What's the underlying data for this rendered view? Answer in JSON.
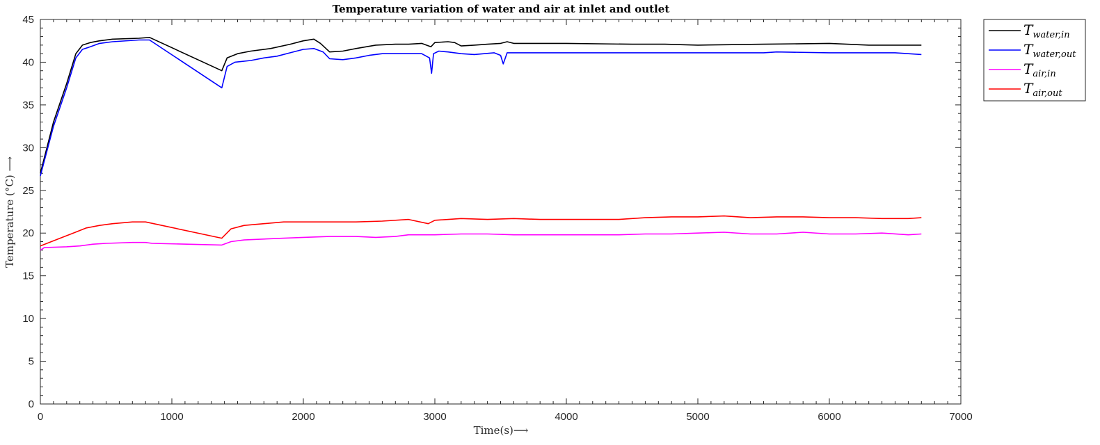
{
  "chart_data": {
    "type": "line",
    "title": "Temperature variation of water and air at inlet and outlet",
    "xlabel": "Time(s)⟶",
    "ylabel": "Temperature (°C) ⟶",
    "xlim": [
      0,
      7000
    ],
    "ylim": [
      0,
      45
    ],
    "xticks": [
      0,
      1000,
      2000,
      3000,
      4000,
      5000,
      6000,
      7000
    ],
    "yticks": [
      0,
      5,
      10,
      15,
      20,
      25,
      30,
      35,
      40,
      45
    ],
    "xtick_labels": [
      "0",
      "1000",
      "2000",
      "3000",
      "4000",
      "5000",
      "6000",
      "7000"
    ],
    "ytick_labels": [
      "0",
      "5",
      "10",
      "15",
      "20",
      "25",
      "30",
      "35",
      "40",
      "45"
    ],
    "grid": false,
    "legend_position": "outside-top-right",
    "series": [
      {
        "name": "T_water,in",
        "legend_main": "T",
        "legend_sub": "water,in",
        "color": "#000000",
        "points": [
          [
            0,
            27
          ],
          [
            100,
            33
          ],
          [
            200,
            37.5
          ],
          [
            270,
            41
          ],
          [
            320,
            42
          ],
          [
            380,
            42.3
          ],
          [
            450,
            42.5
          ],
          [
            550,
            42.7
          ],
          [
            750,
            42.8
          ],
          [
            830,
            42.9
          ],
          [
            1380,
            39
          ],
          [
            1420,
            40.5
          ],
          [
            1500,
            41
          ],
          [
            1600,
            41.3
          ],
          [
            1750,
            41.6
          ],
          [
            1900,
            42.1
          ],
          [
            2000,
            42.5
          ],
          [
            2080,
            42.7
          ],
          [
            2130,
            42.2
          ],
          [
            2200,
            41.2
          ],
          [
            2300,
            41.3
          ],
          [
            2400,
            41.6
          ],
          [
            2550,
            42
          ],
          [
            2700,
            42.1
          ],
          [
            2800,
            42.1
          ],
          [
            2900,
            42.2
          ],
          [
            2970,
            41.8
          ],
          [
            3000,
            42.3
          ],
          [
            3100,
            42.4
          ],
          [
            3150,
            42.3
          ],
          [
            3200,
            41.9
          ],
          [
            3300,
            42
          ],
          [
            3400,
            42.1
          ],
          [
            3500,
            42.2
          ],
          [
            3550,
            42.4
          ],
          [
            3600,
            42.2
          ],
          [
            4000,
            42.2
          ],
          [
            4500,
            42.1
          ],
          [
            4750,
            42.1
          ],
          [
            5000,
            42
          ],
          [
            5500,
            42.1
          ],
          [
            6000,
            42.2
          ],
          [
            6300,
            42
          ],
          [
            6600,
            42
          ],
          [
            6700,
            42
          ]
        ]
      },
      {
        "name": "T_water,out",
        "legend_main": "T",
        "legend_sub": "water,out",
        "color": "#0000ff",
        "points": [
          [
            0,
            26.7
          ],
          [
            100,
            32.5
          ],
          [
            200,
            37
          ],
          [
            270,
            40.5
          ],
          [
            320,
            41.5
          ],
          [
            380,
            41.8
          ],
          [
            450,
            42.2
          ],
          [
            550,
            42.4
          ],
          [
            750,
            42.6
          ],
          [
            830,
            42.6
          ],
          [
            1380,
            37
          ],
          [
            1420,
            39.5
          ],
          [
            1480,
            40
          ],
          [
            1600,
            40.2
          ],
          [
            1700,
            40.5
          ],
          [
            1800,
            40.7
          ],
          [
            1900,
            41.1
          ],
          [
            2000,
            41.5
          ],
          [
            2080,
            41.6
          ],
          [
            2150,
            41.2
          ],
          [
            2200,
            40.4
          ],
          [
            2300,
            40.3
          ],
          [
            2400,
            40.5
          ],
          [
            2500,
            40.8
          ],
          [
            2600,
            41
          ],
          [
            2900,
            41
          ],
          [
            2960,
            40.5
          ],
          [
            2975,
            38.7
          ],
          [
            2990,
            41
          ],
          [
            3030,
            41.3
          ],
          [
            3100,
            41.2
          ],
          [
            3200,
            41
          ],
          [
            3300,
            40.9
          ],
          [
            3450,
            41.1
          ],
          [
            3500,
            40.8
          ],
          [
            3520,
            39.8
          ],
          [
            3550,
            41.1
          ],
          [
            3600,
            41.1
          ],
          [
            4000,
            41.1
          ],
          [
            4500,
            41.1
          ],
          [
            5000,
            41.1
          ],
          [
            5500,
            41.1
          ],
          [
            5600,
            41.2
          ],
          [
            6000,
            41.1
          ],
          [
            6500,
            41.1
          ],
          [
            6700,
            40.9
          ]
        ]
      },
      {
        "name": "T_air,in",
        "legend_main": "T",
        "legend_sub": "air,in",
        "color": "#ff00ff",
        "points": [
          [
            0,
            18
          ],
          [
            30,
            18.3
          ],
          [
            200,
            18.4
          ],
          [
            300,
            18.5
          ],
          [
            400,
            18.7
          ],
          [
            500,
            18.8
          ],
          [
            700,
            18.9
          ],
          [
            800,
            18.9
          ],
          [
            850,
            18.8
          ],
          [
            1380,
            18.6
          ],
          [
            1450,
            19
          ],
          [
            1550,
            19.2
          ],
          [
            1700,
            19.3
          ],
          [
            1850,
            19.4
          ],
          [
            2000,
            19.5
          ],
          [
            2200,
            19.6
          ],
          [
            2400,
            19.6
          ],
          [
            2550,
            19.5
          ],
          [
            2700,
            19.6
          ],
          [
            2800,
            19.8
          ],
          [
            3000,
            19.8
          ],
          [
            3200,
            19.9
          ],
          [
            3400,
            19.9
          ],
          [
            3600,
            19.8
          ],
          [
            3800,
            19.8
          ],
          [
            4000,
            19.8
          ],
          [
            4400,
            19.8
          ],
          [
            4600,
            19.9
          ],
          [
            4800,
            19.9
          ],
          [
            5000,
            20
          ],
          [
            5200,
            20.1
          ],
          [
            5400,
            19.9
          ],
          [
            5600,
            19.9
          ],
          [
            5800,
            20.1
          ],
          [
            6000,
            19.9
          ],
          [
            6200,
            19.9
          ],
          [
            6400,
            20
          ],
          [
            6600,
            19.8
          ],
          [
            6700,
            19.9
          ]
        ]
      },
      {
        "name": "T_air,out",
        "legend_main": "T",
        "legend_sub": "air,out",
        "color": "#ff0000",
        "points": [
          [
            0,
            18.5
          ],
          [
            50,
            18.8
          ],
          [
            150,
            19.4
          ],
          [
            250,
            20
          ],
          [
            350,
            20.6
          ],
          [
            450,
            20.9
          ],
          [
            550,
            21.1
          ],
          [
            700,
            21.3
          ],
          [
            800,
            21.3
          ],
          [
            1380,
            19.4
          ],
          [
            1450,
            20.5
          ],
          [
            1550,
            20.9
          ],
          [
            1700,
            21.1
          ],
          [
            1850,
            21.3
          ],
          [
            2000,
            21.3
          ],
          [
            2200,
            21.3
          ],
          [
            2400,
            21.3
          ],
          [
            2600,
            21.4
          ],
          [
            2800,
            21.6
          ],
          [
            2950,
            21.1
          ],
          [
            3000,
            21.5
          ],
          [
            3200,
            21.7
          ],
          [
            3400,
            21.6
          ],
          [
            3600,
            21.7
          ],
          [
            3800,
            21.6
          ],
          [
            4000,
            21.6
          ],
          [
            4400,
            21.6
          ],
          [
            4600,
            21.8
          ],
          [
            4800,
            21.9
          ],
          [
            5000,
            21.9
          ],
          [
            5200,
            22
          ],
          [
            5400,
            21.8
          ],
          [
            5600,
            21.9
          ],
          [
            5800,
            21.9
          ],
          [
            6000,
            21.8
          ],
          [
            6200,
            21.8
          ],
          [
            6400,
            21.7
          ],
          [
            6600,
            21.7
          ],
          [
            6700,
            21.8
          ]
        ]
      }
    ]
  }
}
